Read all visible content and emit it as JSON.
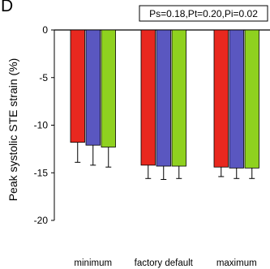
{
  "panel_letter": "D",
  "stats_annotation": "Ps=0.18,Pt=0.20,Pi=0.02",
  "chart_data": {
    "type": "bar",
    "title": "",
    "xlabel": "",
    "ylabel": "Peak systolic STE strain (%)",
    "ylim": [
      -20,
      0
    ],
    "yticks": [
      0,
      -5,
      -10,
      -15,
      -20
    ],
    "ytick_labels": [
      "0",
      "-5",
      "-10",
      "-15",
      "-20"
    ],
    "categories": [
      "minimum",
      "factory default",
      "maximum"
    ],
    "series": [
      {
        "color": "#e8281f",
        "values": [
          -11.8,
          -14.2,
          -14.4
        ],
        "error": [
          2.1,
          1.4,
          1.0
        ]
      },
      {
        "color": "#5a57c0",
        "values": [
          -12.1,
          -14.3,
          -14.5
        ],
        "error": [
          2.1,
          1.4,
          1.1
        ]
      },
      {
        "color": "#8fd11f",
        "values": [
          -12.3,
          -14.3,
          -14.5
        ],
        "error": [
          2.1,
          1.3,
          1.1
        ]
      }
    ],
    "grid": false,
    "legend": "none"
  }
}
